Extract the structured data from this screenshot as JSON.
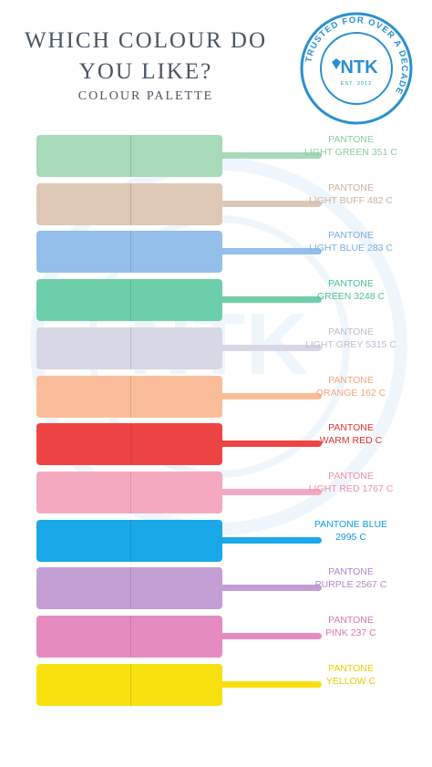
{
  "header": {
    "title_line1": "WHICH COLOUR DO",
    "title_line2": "YOU LIKE?",
    "subtitle": "COLOUR PALETTE"
  },
  "logo": {
    "brand": "NTK",
    "est": "EST. 2012",
    "ring_text": "TRUSTED FOR OVER A DECADE",
    "color": "#2a8fd0"
  },
  "swatches": [
    {
      "line1": "PANTONE",
      "line2": "LIGHT GREEN 351 C",
      "color": "#a6dab8",
      "text_color": "#8ccca2"
    },
    {
      "line1": "PANTONE",
      "line2": "LIGHT BUFF 482 C",
      "color": "#ddc8b7",
      "text_color": "#c9b1a0"
    },
    {
      "line1": "PANTONE",
      "line2": "LIGHT BLUE 283 C",
      "color": "#93bfea",
      "text_color": "#7aaee0"
    },
    {
      "line1": "PANTONE",
      "line2": "GREEN 3248 C",
      "color": "#6dcfa9",
      "text_color": "#4fbf93"
    },
    {
      "line1": "PANTONE",
      "line2": "LIGHT GREY 5315 C",
      "color": "#d8d7e6",
      "text_color": "#bdbccf"
    },
    {
      "line1": "PANTONE",
      "line2": "ORANGE 162 C",
      "color": "#fbbd99",
      "text_color": "#f2a47a"
    },
    {
      "line1": "PANTONE",
      "line2": "WARM RED C",
      "color": "#ef4444",
      "text_color": "#e03232"
    },
    {
      "line1": "PANTONE",
      "line2": "LIGHT RED 1767 C",
      "color": "#f5a9c0",
      "text_color": "#ec8fab"
    },
    {
      "line1": "PANTONE BLUE",
      "line2": "2995 C",
      "color": "#1ba8e8",
      "text_color": "#0f9ce0"
    },
    {
      "line1": "PANTONE",
      "line2": "PURPLE 2567 C",
      "color": "#c39fd6",
      "text_color": "#b088c8"
    },
    {
      "line1": "PANTONE",
      "line2": "PINK 237 C",
      "color": "#e68bc0",
      "text_color": "#dc74b1"
    },
    {
      "line1": "PANTONE",
      "line2": "YELLOW C",
      "color": "#f8e00f",
      "text_color": "#e8cc00"
    }
  ]
}
